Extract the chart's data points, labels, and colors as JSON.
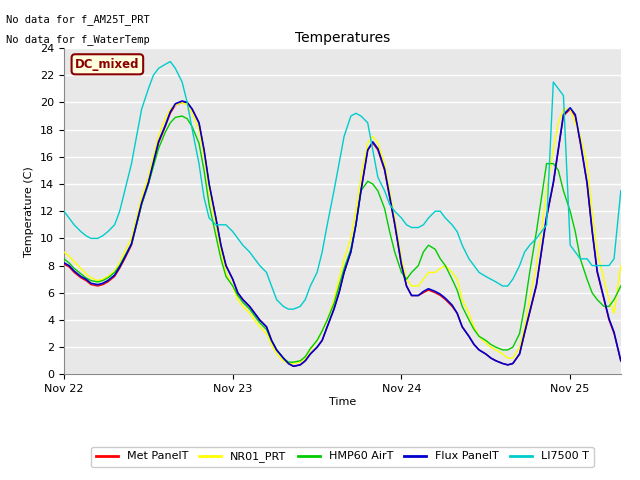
{
  "title": "Temperatures",
  "ylabel": "Temperature (C)",
  "xlabel": "Time",
  "no_data_text": [
    "No data for f_AM25T_PRT",
    "No data for f_WaterTemp"
  ],
  "legend_label_text": "DC_mixed",
  "legend_entries": [
    "Met PanelT",
    "NR01_PRT",
    "HMP60 AirT",
    "Flux PanelT",
    "LI7500 T"
  ],
  "legend_colors": [
    "#ff0000",
    "#ffff00",
    "#00cc00",
    "#0000cc",
    "#00cccc"
  ],
  "xlim": [
    0,
    3.3
  ],
  "ylim": [
    0,
    24
  ],
  "yticks": [
    0,
    2,
    4,
    6,
    8,
    10,
    12,
    14,
    16,
    18,
    20,
    22,
    24
  ],
  "xtick_positions": [
    0,
    1,
    2,
    3
  ],
  "xtick_labels": [
    "Nov 22",
    "Nov 23",
    "Nov 24",
    "Nov 25"
  ],
  "background_color": "#ffffff",
  "axes_bg_color": "#e8e8e8",
  "grid_color": "#ffffff",
  "series": {
    "met_panel": {
      "color": "#ff0000",
      "lw": 1.0,
      "x": [
        0.0,
        0.03,
        0.06,
        0.1,
        0.13,
        0.16,
        0.2,
        0.23,
        0.26,
        0.3,
        0.33,
        0.36,
        0.4,
        0.43,
        0.46,
        0.5,
        0.53,
        0.56,
        0.6,
        0.63,
        0.66,
        0.7,
        0.73,
        0.76,
        0.8,
        0.83,
        0.86,
        0.9,
        0.93,
        0.96,
        1.0,
        1.03,
        1.06,
        1.1,
        1.13,
        1.16,
        1.2,
        1.23,
        1.26,
        1.3,
        1.33,
        1.36,
        1.4,
        1.43,
        1.46,
        1.5,
        1.53,
        1.56,
        1.6,
        1.63,
        1.66,
        1.7,
        1.73,
        1.76,
        1.8,
        1.83,
        1.86,
        1.9,
        1.93,
        1.96,
        2.0,
        2.03,
        2.06,
        2.1,
        2.13,
        2.16,
        2.2,
        2.23,
        2.26,
        2.3,
        2.33,
        2.36,
        2.4,
        2.43,
        2.46,
        2.5,
        2.53,
        2.56,
        2.6,
        2.63,
        2.66,
        2.7,
        2.73,
        2.76,
        2.8,
        2.83,
        2.86,
        2.9,
        2.93,
        2.96,
        3.0,
        3.03,
        3.06,
        3.1,
        3.13,
        3.16,
        3.2,
        3.23,
        3.26,
        3.3
      ],
      "y": [
        8.1,
        7.9,
        7.5,
        7.1,
        6.9,
        6.6,
        6.5,
        6.6,
        6.8,
        7.2,
        7.8,
        8.5,
        9.5,
        11.0,
        12.5,
        14.0,
        15.5,
        17.0,
        18.2,
        19.2,
        19.8,
        20.0,
        20.0,
        19.5,
        18.5,
        16.5,
        14.0,
        11.5,
        9.5,
        8.0,
        7.0,
        6.0,
        5.5,
        5.0,
        4.5,
        4.0,
        3.5,
        2.5,
        1.8,
        1.2,
        0.8,
        0.6,
        0.7,
        1.0,
        1.5,
        2.0,
        2.5,
        3.5,
        4.8,
        6.0,
        7.5,
        9.0,
        11.0,
        13.5,
        16.5,
        17.0,
        16.5,
        15.0,
        13.0,
        11.0,
        8.0,
        6.5,
        5.8,
        5.8,
        6.0,
        6.2,
        6.0,
        5.8,
        5.5,
        5.0,
        4.5,
        3.5,
        2.8,
        2.2,
        1.8,
        1.5,
        1.2,
        1.0,
        0.8,
        0.7,
        0.8,
        1.5,
        3.0,
        4.5,
        6.5,
        9.0,
        11.5,
        14.0,
        16.5,
        19.0,
        19.5,
        19.0,
        17.0,
        14.0,
        10.5,
        7.5,
        5.5,
        4.0,
        3.0,
        1.0
      ]
    },
    "nr01_prt": {
      "color": "#ffff00",
      "lw": 1.0,
      "x": [
        0.0,
        0.03,
        0.06,
        0.1,
        0.13,
        0.16,
        0.2,
        0.23,
        0.26,
        0.3,
        0.33,
        0.36,
        0.4,
        0.43,
        0.46,
        0.5,
        0.53,
        0.56,
        0.6,
        0.63,
        0.66,
        0.7,
        0.73,
        0.76,
        0.8,
        0.83,
        0.86,
        0.9,
        0.93,
        0.96,
        1.0,
        1.03,
        1.06,
        1.1,
        1.13,
        1.16,
        1.2,
        1.23,
        1.26,
        1.3,
        1.33,
        1.36,
        1.4,
        1.43,
        1.46,
        1.5,
        1.53,
        1.56,
        1.6,
        1.63,
        1.66,
        1.7,
        1.73,
        1.76,
        1.8,
        1.83,
        1.86,
        1.9,
        1.93,
        1.96,
        2.0,
        2.03,
        2.06,
        2.1,
        2.13,
        2.16,
        2.2,
        2.23,
        2.26,
        2.3,
        2.33,
        2.36,
        2.4,
        2.43,
        2.46,
        2.5,
        2.53,
        2.56,
        2.6,
        2.63,
        2.66,
        2.7,
        2.73,
        2.76,
        2.8,
        2.83,
        2.86,
        2.9,
        2.93,
        2.96,
        3.0,
        3.03,
        3.06,
        3.1,
        3.13,
        3.16,
        3.2,
        3.23,
        3.26,
        3.3
      ],
      "y": [
        9.0,
        8.7,
        8.3,
        7.8,
        7.4,
        7.1,
        6.9,
        7.0,
        7.2,
        7.6,
        8.2,
        9.0,
        10.0,
        11.5,
        13.0,
        14.5,
        16.0,
        17.5,
        18.8,
        19.5,
        19.8,
        20.0,
        19.8,
        19.2,
        18.0,
        16.0,
        13.5,
        11.0,
        9.0,
        7.5,
        6.5,
        5.5,
        5.0,
        4.5,
        4.0,
        3.5,
        3.0,
        2.2,
        1.5,
        1.0,
        0.8,
        0.8,
        0.9,
        1.2,
        1.8,
        2.5,
        3.2,
        4.0,
        5.5,
        7.0,
        8.5,
        10.0,
        12.0,
        14.5,
        17.0,
        17.5,
        17.0,
        15.5,
        13.5,
        11.5,
        8.5,
        7.0,
        6.5,
        6.5,
        7.0,
        7.5,
        7.5,
        7.8,
        8.0,
        7.5,
        7.0,
        5.5,
        4.5,
        3.5,
        2.8,
        2.3,
        2.0,
        1.8,
        1.5,
        1.2,
        1.2,
        2.0,
        3.5,
        5.5,
        8.0,
        10.5,
        13.5,
        16.5,
        18.5,
        19.5,
        19.5,
        18.5,
        17.5,
        15.5,
        12.0,
        9.0,
        7.0,
        5.5,
        4.5,
        8.0
      ]
    },
    "hmp60_airt": {
      "color": "#00cc00",
      "lw": 1.0,
      "x": [
        0.0,
        0.03,
        0.06,
        0.1,
        0.13,
        0.16,
        0.2,
        0.23,
        0.26,
        0.3,
        0.33,
        0.36,
        0.4,
        0.43,
        0.46,
        0.5,
        0.53,
        0.56,
        0.6,
        0.63,
        0.66,
        0.7,
        0.73,
        0.76,
        0.8,
        0.83,
        0.86,
        0.9,
        0.93,
        0.96,
        1.0,
        1.03,
        1.06,
        1.1,
        1.13,
        1.16,
        1.2,
        1.23,
        1.26,
        1.3,
        1.33,
        1.36,
        1.4,
        1.43,
        1.46,
        1.5,
        1.53,
        1.56,
        1.6,
        1.63,
        1.66,
        1.7,
        1.73,
        1.76,
        1.8,
        1.83,
        1.86,
        1.9,
        1.93,
        1.96,
        2.0,
        2.03,
        2.06,
        2.1,
        2.13,
        2.16,
        2.2,
        2.23,
        2.26,
        2.3,
        2.33,
        2.36,
        2.4,
        2.43,
        2.46,
        2.5,
        2.53,
        2.56,
        2.6,
        2.63,
        2.66,
        2.7,
        2.73,
        2.76,
        2.8,
        2.83,
        2.86,
        2.9,
        2.93,
        2.96,
        3.0,
        3.03,
        3.06,
        3.1,
        3.13,
        3.16,
        3.2,
        3.23,
        3.26,
        3.3
      ],
      "y": [
        8.5,
        8.2,
        7.8,
        7.4,
        7.1,
        6.9,
        6.8,
        6.9,
        7.1,
        7.5,
        8.0,
        8.7,
        9.6,
        11.0,
        12.5,
        14.0,
        15.3,
        16.6,
        17.8,
        18.5,
        18.9,
        19.0,
        18.8,
        18.2,
        17.0,
        15.0,
        12.5,
        10.2,
        8.5,
        7.2,
        6.5,
        5.8,
        5.3,
        4.8,
        4.3,
        3.8,
        3.3,
        2.5,
        1.8,
        1.2,
        0.9,
        0.9,
        1.0,
        1.3,
        1.9,
        2.5,
        3.2,
        4.0,
        5.2,
        6.5,
        7.8,
        9.2,
        11.0,
        13.5,
        14.2,
        14.0,
        13.5,
        12.2,
        10.5,
        9.0,
        7.5,
        7.0,
        7.5,
        8.0,
        9.0,
        9.5,
        9.2,
        8.5,
        8.0,
        7.0,
        6.2,
        5.0,
        4.0,
        3.3,
        2.8,
        2.5,
        2.2,
        2.0,
        1.8,
        1.8,
        2.0,
        3.0,
        5.0,
        7.5,
        10.5,
        13.0,
        15.5,
        15.5,
        15.0,
        13.5,
        12.0,
        10.5,
        8.5,
        7.0,
        6.0,
        5.5,
        5.0,
        5.0,
        5.5,
        6.5
      ]
    },
    "flux_panel": {
      "color": "#0000cc",
      "lw": 1.2,
      "x": [
        0.0,
        0.03,
        0.06,
        0.1,
        0.13,
        0.16,
        0.2,
        0.23,
        0.26,
        0.3,
        0.33,
        0.36,
        0.4,
        0.43,
        0.46,
        0.5,
        0.53,
        0.56,
        0.6,
        0.63,
        0.66,
        0.7,
        0.73,
        0.76,
        0.8,
        0.83,
        0.86,
        0.9,
        0.93,
        0.96,
        1.0,
        1.03,
        1.06,
        1.1,
        1.13,
        1.16,
        1.2,
        1.23,
        1.26,
        1.3,
        1.33,
        1.36,
        1.4,
        1.43,
        1.46,
        1.5,
        1.53,
        1.56,
        1.6,
        1.63,
        1.66,
        1.7,
        1.73,
        1.76,
        1.8,
        1.83,
        1.86,
        1.9,
        1.93,
        1.96,
        2.0,
        2.03,
        2.06,
        2.1,
        2.13,
        2.16,
        2.2,
        2.23,
        2.26,
        2.3,
        2.33,
        2.36,
        2.4,
        2.43,
        2.46,
        2.5,
        2.53,
        2.56,
        2.6,
        2.63,
        2.66,
        2.7,
        2.73,
        2.76,
        2.8,
        2.83,
        2.86,
        2.9,
        2.93,
        2.96,
        3.0,
        3.03,
        3.06,
        3.1,
        3.13,
        3.16,
        3.2,
        3.23,
        3.26,
        3.3
      ],
      "y": [
        8.2,
        8.0,
        7.6,
        7.2,
        7.0,
        6.7,
        6.6,
        6.7,
        6.9,
        7.3,
        7.9,
        8.6,
        9.6,
        11.1,
        12.6,
        14.1,
        15.6,
        17.1,
        18.3,
        19.3,
        19.9,
        20.1,
        20.0,
        19.5,
        18.5,
        16.5,
        14.0,
        11.5,
        9.5,
        8.0,
        7.0,
        6.0,
        5.5,
        5.0,
        4.5,
        4.0,
        3.5,
        2.5,
        1.8,
        1.2,
        0.8,
        0.6,
        0.7,
        1.0,
        1.5,
        2.0,
        2.5,
        3.5,
        4.8,
        6.0,
        7.5,
        9.0,
        11.0,
        13.5,
        16.5,
        17.1,
        16.6,
        15.1,
        13.1,
        11.1,
        8.1,
        6.5,
        5.8,
        5.8,
        6.1,
        6.3,
        6.1,
        5.9,
        5.6,
        5.1,
        4.5,
        3.5,
        2.8,
        2.2,
        1.8,
        1.5,
        1.2,
        1.0,
        0.8,
        0.7,
        0.8,
        1.5,
        3.1,
        4.6,
        6.6,
        9.1,
        11.6,
        14.1,
        16.6,
        19.1,
        19.6,
        19.1,
        17.1,
        14.1,
        10.6,
        7.6,
        5.6,
        4.1,
        3.1,
        1.0
      ]
    },
    "li7500_t": {
      "color": "#00cccc",
      "lw": 1.0,
      "x": [
        0.0,
        0.03,
        0.06,
        0.1,
        0.13,
        0.16,
        0.2,
        0.23,
        0.26,
        0.3,
        0.33,
        0.36,
        0.4,
        0.43,
        0.46,
        0.5,
        0.53,
        0.56,
        0.6,
        0.63,
        0.66,
        0.7,
        0.73,
        0.76,
        0.8,
        0.83,
        0.86,
        0.9,
        0.93,
        0.96,
        1.0,
        1.03,
        1.06,
        1.1,
        1.13,
        1.16,
        1.2,
        1.23,
        1.26,
        1.3,
        1.33,
        1.36,
        1.4,
        1.43,
        1.46,
        1.5,
        1.53,
        1.56,
        1.6,
        1.63,
        1.66,
        1.7,
        1.73,
        1.76,
        1.8,
        1.83,
        1.86,
        1.9,
        1.93,
        1.96,
        2.0,
        2.03,
        2.06,
        2.1,
        2.13,
        2.16,
        2.2,
        2.23,
        2.26,
        2.3,
        2.33,
        2.36,
        2.4,
        2.43,
        2.46,
        2.5,
        2.53,
        2.56,
        2.6,
        2.63,
        2.66,
        2.7,
        2.73,
        2.76,
        2.8,
        2.83,
        2.86,
        2.9,
        2.93,
        2.96,
        3.0,
        3.03,
        3.06,
        3.1,
        3.13,
        3.16,
        3.2,
        3.23,
        3.26,
        3.3
      ],
      "y": [
        12.0,
        11.5,
        11.0,
        10.5,
        10.2,
        10.0,
        10.0,
        10.2,
        10.5,
        11.0,
        12.0,
        13.5,
        15.5,
        17.5,
        19.5,
        21.0,
        22.0,
        22.5,
        22.8,
        23.0,
        22.5,
        21.5,
        20.0,
        18.0,
        15.5,
        13.0,
        11.5,
        11.0,
        11.0,
        11.0,
        10.5,
        10.0,
        9.5,
        9.0,
        8.5,
        8.0,
        7.5,
        6.5,
        5.5,
        5.0,
        4.8,
        4.8,
        5.0,
        5.5,
        6.5,
        7.5,
        9.0,
        11.0,
        13.5,
        15.5,
        17.5,
        19.0,
        19.2,
        19.0,
        18.5,
        16.5,
        14.5,
        13.5,
        12.5,
        12.0,
        11.5,
        11.0,
        10.8,
        10.8,
        11.0,
        11.5,
        12.0,
        12.0,
        11.5,
        11.0,
        10.5,
        9.5,
        8.5,
        8.0,
        7.5,
        7.2,
        7.0,
        6.8,
        6.5,
        6.5,
        7.0,
        8.0,
        9.0,
        9.5,
        10.0,
        10.5,
        11.0,
        21.5,
        21.0,
        20.5,
        9.5,
        9.0,
        8.5,
        8.5,
        8.0,
        8.0,
        8.0,
        8.0,
        8.5,
        13.5
      ]
    }
  }
}
